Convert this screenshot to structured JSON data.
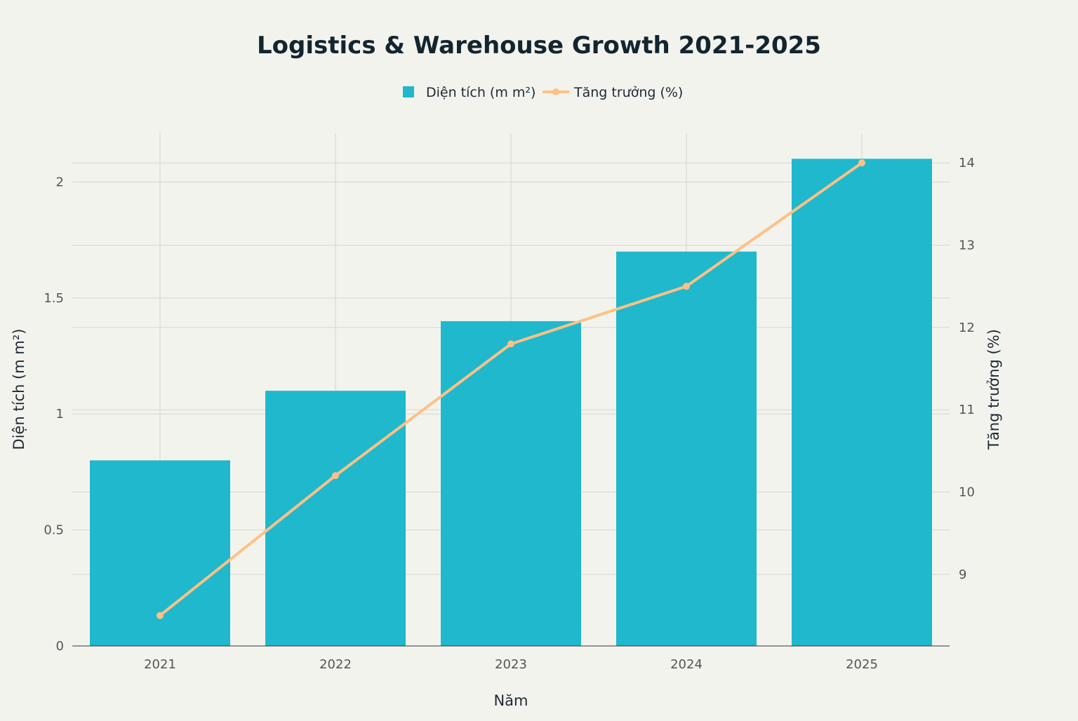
{
  "chart_data": {
    "type": "bar+line",
    "title": "Logistics & Warehouse Growth 2021-2025",
    "xlabel": "Năm",
    "ylabel": "Diện tích (m m²)",
    "y2label": "Tăng trưởng (%)",
    "categories": [
      "2021",
      "2022",
      "2023",
      "2024",
      "2025"
    ],
    "series": [
      {
        "name": "Diện tích (m m²)",
        "type": "bar",
        "axis": "left",
        "values": [
          0.8,
          1.1,
          1.4,
          1.7,
          2.1
        ],
        "color": "#1fb8cd"
      },
      {
        "name": "Tăng trưởng (%)",
        "type": "line",
        "axis": "right",
        "values": [
          8.5,
          10.2,
          11.8,
          12.5,
          14.0
        ],
        "color": "#ffc185"
      }
    ],
    "ylim": [
      0,
      2.21
    ],
    "yticks": [
      "0",
      "0.5",
      "1",
      "1.5",
      "2"
    ],
    "y2lim": [
      8.13,
      14.36
    ],
    "y2ticks": [
      "9",
      "10",
      "11",
      "12",
      "13",
      "14"
    ],
    "grid": true,
    "legend": "top-center"
  }
}
